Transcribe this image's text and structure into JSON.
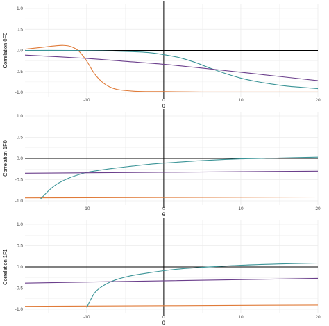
{
  "colors": {
    "series_a": "#E07B39",
    "series_b": "#3B9497",
    "series_c": "#6B3F8C",
    "grid": "#ebebeb",
    "ref_lines": "#000000"
  },
  "chart_data": [
    {
      "type": "line",
      "ylabel": "Correlation 0F0",
      "xlabel": "θ",
      "xlim": [
        -18,
        20
      ],
      "ylim": [
        -1,
        1
      ],
      "xticks": [
        "-10",
        "0",
        "10",
        "20"
      ],
      "yticks": [
        "-1.0",
        "-0.5",
        "0.0",
        "0.5",
        "1.0"
      ],
      "hlines": [
        0
      ],
      "vlines": [
        0
      ],
      "grid": true,
      "legend": "none",
      "series": [
        {
          "color": "#E07B39",
          "x": [
            -18,
            -16,
            -14,
            -13,
            -12,
            -11,
            -10,
            -9,
            -8,
            -7,
            -6,
            -4,
            -2,
            0,
            5,
            10,
            20
          ],
          "y": [
            0.03,
            0.07,
            0.11,
            0.12,
            0.09,
            -0.02,
            -0.25,
            -0.55,
            -0.75,
            -0.87,
            -0.93,
            -0.97,
            -0.98,
            -0.98,
            -0.99,
            -0.99,
            -0.99
          ]
        },
        {
          "color": "#3B9497",
          "x": [
            -18,
            -12,
            -8,
            -4,
            -2,
            0,
            2,
            4,
            6,
            8,
            10,
            12,
            14,
            16,
            18,
            20
          ],
          "y": [
            0.0,
            0.0,
            -0.01,
            -0.03,
            -0.05,
            -0.1,
            -0.17,
            -0.28,
            -0.42,
            -0.55,
            -0.66,
            -0.74,
            -0.8,
            -0.85,
            -0.88,
            -0.91
          ]
        },
        {
          "color": "#6B3F8C",
          "x": [
            -18,
            -10,
            -5,
            0,
            5,
            10,
            15,
            20
          ],
          "y": [
            -0.11,
            -0.19,
            -0.26,
            -0.33,
            -0.42,
            -0.52,
            -0.62,
            -0.72
          ]
        }
      ]
    },
    {
      "type": "line",
      "ylabel": "Correlation 1F0",
      "xlabel": "θ",
      "xlim": [
        -18,
        20
      ],
      "ylim": [
        -1,
        1
      ],
      "xticks": [
        "-10",
        "0",
        "10",
        "20"
      ],
      "yticks": [
        "-1.0",
        "-0.5",
        "0.0",
        "0.5",
        "1.0"
      ],
      "hlines": [
        0
      ],
      "vlines": [
        0
      ],
      "grid": true,
      "legend": "none",
      "series": [
        {
          "color": "#E07B39",
          "x": [
            -18,
            20
          ],
          "y": [
            -0.93,
            -0.91
          ]
        },
        {
          "color": "#3B9497",
          "x": [
            -16,
            -15,
            -14,
            -13,
            -12,
            -10,
            -8,
            -6,
            -4,
            -2,
            0,
            5,
            10,
            15,
            20
          ],
          "y": [
            -0.96,
            -0.77,
            -0.62,
            -0.52,
            -0.44,
            -0.33,
            -0.27,
            -0.22,
            -0.18,
            -0.14,
            -0.11,
            -0.05,
            -0.01,
            0.01,
            0.03
          ]
        },
        {
          "color": "#6B3F8C",
          "x": [
            -18,
            20
          ],
          "y": [
            -0.35,
            -0.3
          ]
        }
      ]
    },
    {
      "type": "line",
      "ylabel": "Correlation 1F1",
      "xlabel": "θ",
      "xlim": [
        -18,
        20
      ],
      "ylim": [
        -1,
        1
      ],
      "xticks": [
        "-10",
        "0",
        "10",
        "20"
      ],
      "yticks": [
        "-1.0",
        "-0.5",
        "0.0",
        "0.5",
        "1.0"
      ],
      "hlines": [
        0
      ],
      "vlines": [
        0
      ],
      "grid": true,
      "legend": "none",
      "series": [
        {
          "color": "#E07B39",
          "x": [
            -18,
            20
          ],
          "y": [
            -0.93,
            -0.9
          ]
        },
        {
          "color": "#3B9497",
          "x": [
            -10,
            -9,
            -8,
            -7,
            -6,
            -5,
            -4,
            -2,
            0,
            2,
            5,
            10,
            15,
            20
          ],
          "y": [
            -0.96,
            -0.62,
            -0.46,
            -0.36,
            -0.29,
            -0.24,
            -0.2,
            -0.14,
            -0.09,
            -0.05,
            -0.01,
            0.04,
            0.07,
            0.09
          ]
        },
        {
          "color": "#6B3F8C",
          "x": [
            -18,
            20
          ],
          "y": [
            -0.38,
            -0.27
          ]
        }
      ]
    }
  ]
}
